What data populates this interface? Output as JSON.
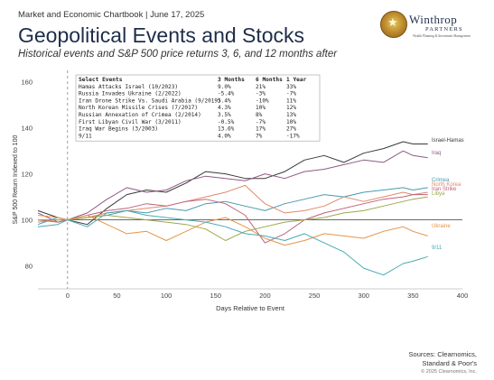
{
  "header": {
    "text": "Market and Economic Chartbook | June 17, 2025"
  },
  "logo": {
    "name": "Winthrop",
    "sub": "PARTNERS",
    "tagline": "Wealth Planning & Investment Management"
  },
  "title": "Geopolitical Events and Stocks",
  "subtitle": "Historical events and S&P 500 price returns 3, 6, and 12 months after",
  "table": {
    "headers": [
      "Select Events",
      "3 Months",
      "6 Months",
      "1 Year"
    ],
    "rows": [
      [
        "Hamas Attacks Israel (10/2023)",
        "9.0%",
        "21%",
        "33%"
      ],
      [
        "Russia Invades Ukraine (2/2022)",
        "-5.4%",
        "-3%",
        "-7%"
      ],
      [
        "Iran Drone Strike Vs. Saudi Arabia (9/2019)",
        "5.4%",
        "-10%",
        "11%"
      ],
      [
        "North Korean Missile Crises (7/2017)",
        "4.3%",
        "10%",
        "12%"
      ],
      [
        "Russian Annexation of Crimea (2/2014)",
        "3.5%",
        "8%",
        "13%"
      ],
      [
        "First Libyan Civil War (3/2011)",
        "-0.5%",
        "-7%",
        "10%"
      ],
      [
        "Iraq War Begins (3/2003)",
        "13.6%",
        "17%",
        "27%"
      ],
      [
        "9/11",
        "4.0%",
        "7%",
        "-17%"
      ]
    ]
  },
  "sources": {
    "line1": "Sources: Clearnomics,",
    "line2": "Standard & Poor's",
    "copyright": "© 2025 Clearnomics, Inc."
  },
  "chart_data": {
    "type": "line",
    "xlabel": "Days Relative to Event",
    "ylabel": "S&P 500 Return Indexed to 100",
    "xlim": [
      -30,
      400
    ],
    "ylim": [
      70,
      165
    ],
    "xticks": [
      0,
      50,
      100,
      150,
      200,
      250,
      300,
      350,
      400
    ],
    "yticks": [
      80,
      100,
      120,
      140,
      160
    ],
    "reference_lines": {
      "x": 0,
      "y": 100
    },
    "series": [
      {
        "name": "Israel-Hamas",
        "color": "#3a3a3a",
        "x": [
          -30,
          -10,
          0,
          20,
          40,
          60,
          80,
          100,
          120,
          140,
          160,
          180,
          200,
          220,
          240,
          260,
          280,
          300,
          320,
          340,
          350,
          365
        ],
        "y": [
          104,
          101,
          100,
          98,
          105,
          111,
          113,
          112,
          116,
          121,
          120,
          118,
          118,
          121,
          126,
          128,
          125,
          129,
          131,
          134,
          133,
          133
        ]
      },
      {
        "name": "Iraq",
        "color": "#8e5a84",
        "x": [
          -30,
          -10,
          0,
          20,
          40,
          60,
          80,
          100,
          120,
          140,
          160,
          180,
          200,
          220,
          240,
          260,
          280,
          300,
          320,
          340,
          350,
          365
        ],
        "y": [
          103,
          99,
          100,
          103,
          109,
          114,
          112,
          113,
          117,
          119,
          118,
          117,
          120,
          118,
          121,
          122,
          124,
          126,
          125,
          130,
          128,
          127
        ]
      },
      {
        "name": "Crimea",
        "color": "#4a9ab0",
        "x": [
          -30,
          -10,
          0,
          20,
          40,
          60,
          80,
          100,
          120,
          140,
          160,
          180,
          200,
          220,
          240,
          260,
          280,
          300,
          320,
          340,
          350,
          365
        ],
        "y": [
          98,
          101,
          100,
          101,
          102,
          104,
          103,
          105,
          104,
          107,
          108,
          106,
          104,
          107,
          109,
          111,
          110,
          112,
          113,
          114,
          113,
          114
        ]
      },
      {
        "name": "North Korea",
        "color": "#e0896a",
        "x": [
          -30,
          -10,
          0,
          20,
          40,
          60,
          80,
          100,
          120,
          140,
          160,
          180,
          200,
          220,
          240,
          260,
          280,
          300,
          320,
          340,
          350,
          365
        ],
        "y": [
          99,
          100,
          100,
          101,
          103,
          104,
          105,
          106,
          108,
          110,
          112,
          115,
          107,
          103,
          104,
          106,
          110,
          108,
          110,
          112,
          111,
          112
        ]
      },
      {
        "name": "Iran Strike",
        "color": "#c0607a",
        "x": [
          -30,
          -10,
          0,
          20,
          40,
          60,
          80,
          100,
          120,
          140,
          160,
          180,
          200,
          220,
          240,
          260,
          280,
          300,
          320,
          340,
          350,
          365
        ],
        "y": [
          100,
          99,
          100,
          102,
          104,
          105,
          107,
          106,
          108,
          109,
          107,
          102,
          90,
          94,
          100,
          103,
          105,
          107,
          109,
          110,
          111,
          111
        ]
      },
      {
        "name": "Libya",
        "color": "#9aa84c",
        "x": [
          -30,
          -10,
          0,
          20,
          40,
          60,
          80,
          100,
          120,
          140,
          160,
          180,
          200,
          220,
          240,
          260,
          280,
          300,
          320,
          340,
          350,
          365
        ],
        "y": [
          100,
          100,
          100,
          101,
          102,
          101,
          100,
          99,
          98,
          96,
          91,
          95,
          97,
          99,
          100,
          101,
          103,
          104,
          106,
          108,
          109,
          110
        ]
      },
      {
        "name": "Ukraine",
        "color": "#e59449",
        "x": [
          -30,
          -10,
          0,
          20,
          40,
          60,
          80,
          100,
          120,
          140,
          160,
          180,
          200,
          220,
          240,
          260,
          280,
          300,
          320,
          340,
          350,
          365
        ],
        "y": [
          102,
          101,
          100,
          102,
          98,
          94,
          95,
          91,
          95,
          99,
          101,
          97,
          92,
          89,
          91,
          94,
          93,
          92,
          95,
          97,
          95,
          93
        ]
      },
      {
        "name": "9/11",
        "color": "#4aa9b4",
        "x": [
          -30,
          -10,
          0,
          20,
          40,
          60,
          80,
          100,
          120,
          140,
          160,
          180,
          200,
          220,
          240,
          260,
          280,
          300,
          320,
          340,
          350,
          365
        ],
        "y": [
          97,
          98,
          100,
          97,
          103,
          104,
          102,
          101,
          100,
          99,
          97,
          94,
          93,
          91,
          94,
          90,
          86,
          79,
          76,
          81,
          82,
          84
        ]
      }
    ],
    "end_labels": [
      "Israel-Hamas",
      "Iraq",
      "Crimea",
      "North Korea",
      "Iran Strike",
      "Libya",
      "Ukraine",
      "9/11"
    ]
  }
}
